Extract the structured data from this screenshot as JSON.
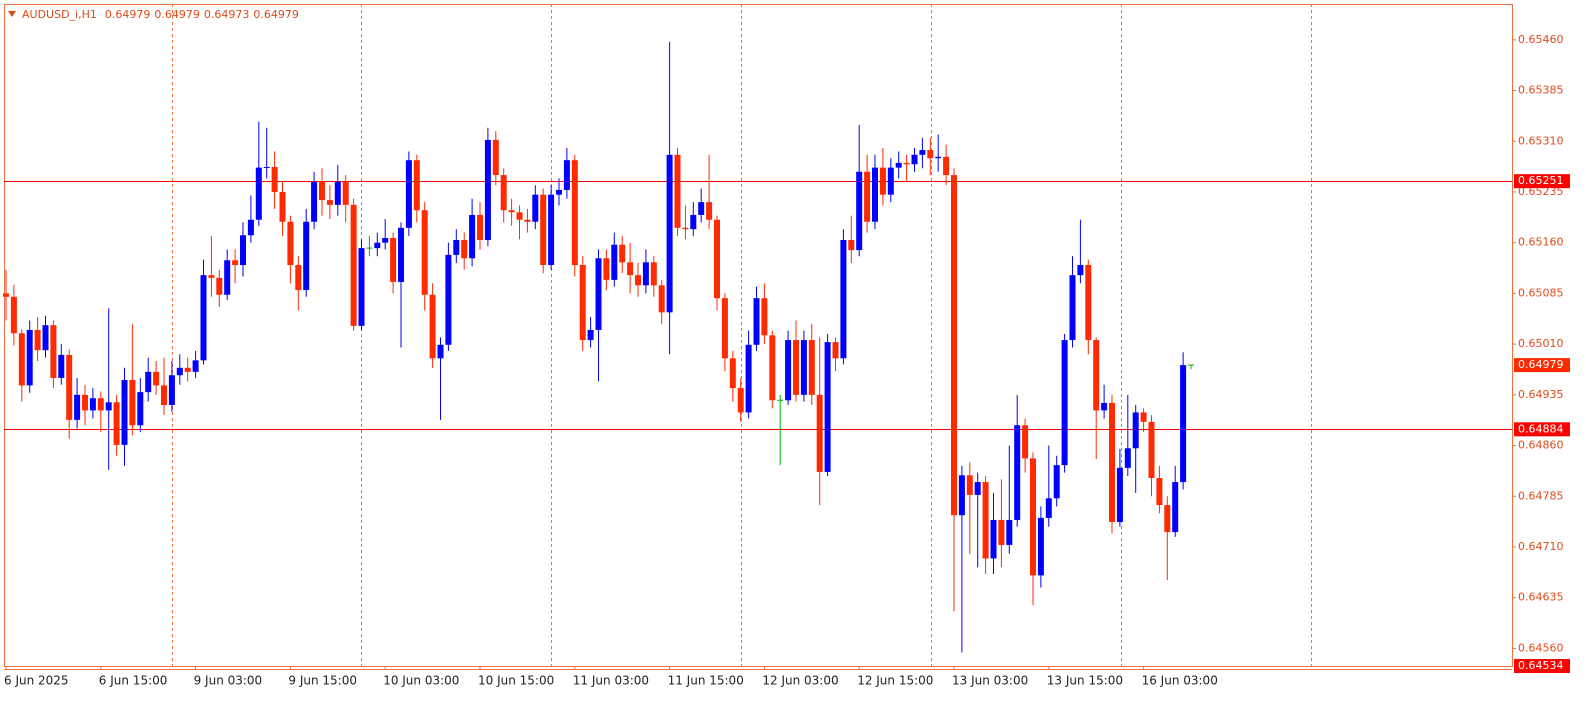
{
  "chart_data": {
    "type": "candlestick",
    "symbol": "AUDUSD_i,H1",
    "up_color": "#0000ff",
    "down_color": "#ff2a00",
    "doji_color": "#00b000",
    "ylim": [
      0.64534,
      0.65513
    ],
    "yticks": [
      {
        "value": 0.6546,
        "label": "0.65460"
      },
      0.65385,
      {
        "value": 0.6531,
        "label": "0.65310"
      },
      0.65235,
      {
        "value": 0.6516,
        "label": "0.65160"
      },
      0.65085,
      {
        "value": 0.6501,
        "label": "0.65010"
      },
      0.64935,
      {
        "value": 0.6486,
        "label": "0.64860"
      },
      0.64785,
      {
        "value": 0.6471,
        "label": "0.64710"
      },
      0.64635,
      {
        "value": 0.6456,
        "label": "0.64560"
      }
    ],
    "levels": [
      0.65251,
      0.64884
    ],
    "level_color": "#ff0000",
    "grid": true,
    "categories": [
      "6 Jun 2025",
      null,
      null,
      null,
      null,
      null,
      null,
      null,
      null,
      null,
      null,
      null,
      "6 Jun 15:00",
      null,
      null,
      null,
      null,
      null,
      null,
      null,
      null,
      null,
      null,
      null,
      "9 Jun 03:00",
      null,
      null,
      null,
      null,
      null,
      null,
      null,
      null,
      null,
      null,
      null,
      "9 Jun 15:00",
      null,
      null,
      null,
      null,
      null,
      null,
      null,
      null,
      null,
      null,
      null,
      "10 Jun 03:00",
      null,
      null,
      null,
      null,
      null,
      null,
      null,
      null,
      null,
      null,
      null,
      "10 Jun 15:00",
      null,
      null,
      null,
      null,
      null,
      null,
      null,
      null,
      null,
      null,
      null,
      "11 Jun 03:00",
      null,
      null,
      null,
      null,
      null,
      null,
      null,
      null,
      null,
      null,
      null,
      "11 Jun 15:00",
      null,
      null,
      null,
      null,
      null,
      null,
      null,
      null,
      null,
      null,
      null,
      "12 Jun 03:00",
      null,
      null,
      null,
      null,
      null,
      null,
      null,
      null,
      null,
      null,
      null,
      "12 Jun 15:00",
      null,
      null,
      null,
      null,
      null,
      null,
      null,
      null,
      null,
      null,
      null,
      "13 Jun 03:00",
      null,
      null,
      null,
      null,
      null,
      null,
      null,
      null,
      null,
      null,
      null,
      "13 Jun 15:00",
      null,
      null,
      null,
      null,
      null,
      null,
      null,
      null,
      null,
      null,
      null,
      "16 Jun 03:00",
      null,
      null,
      null,
      null,
      null,
      null
    ],
    "candles": [
      [
        0.65085,
        0.6512,
        0.65045,
        0.6508
      ],
      [
        0.6508,
        0.65098,
        0.65008,
        0.65026
      ],
      [
        0.65026,
        0.65032,
        0.64925,
        0.64949
      ],
      [
        0.64949,
        0.65045,
        0.64938,
        0.65031
      ],
      [
        0.65031,
        0.6505,
        0.64985,
        0.65001
      ],
      [
        0.65001,
        0.65052,
        0.6499,
        0.65038
      ],
      [
        0.65038,
        0.65045,
        0.64945,
        0.6496
      ],
      [
        0.6496,
        0.6501,
        0.6495,
        0.64994
      ],
      [
        0.64994,
        0.65002,
        0.6487,
        0.64898
      ],
      [
        0.64898,
        0.6496,
        0.64885,
        0.64935
      ],
      [
        0.64935,
        0.6495,
        0.6489,
        0.64912
      ],
      [
        0.64912,
        0.64945,
        0.649,
        0.6493
      ],
      [
        0.6493,
        0.6494,
        0.6488,
        0.64912
      ],
      [
        0.64912,
        0.65063,
        0.64824,
        0.64924
      ],
      [
        0.64924,
        0.64935,
        0.64845,
        0.64861
      ],
      [
        0.64861,
        0.64975,
        0.6483,
        0.64957
      ],
      [
        0.64957,
        0.6504,
        0.64875,
        0.6489
      ],
      [
        0.6489,
        0.6496,
        0.6488,
        0.64939
      ],
      [
        0.64939,
        0.6499,
        0.64925,
        0.64969
      ],
      [
        0.64969,
        0.64985,
        0.64935,
        0.64949
      ],
      [
        0.64949,
        0.6499,
        0.64905,
        0.6492
      ],
      [
        0.6492,
        0.64985,
        0.6491,
        0.64964
      ],
      [
        0.64964,
        0.64995,
        0.6495,
        0.64975
      ],
      [
        0.64975,
        0.6499,
        0.64955,
        0.64969
      ],
      [
        0.64969,
        0.65,
        0.6496,
        0.64986
      ],
      [
        0.64986,
        0.65135,
        0.6498,
        0.65112
      ],
      [
        0.65112,
        0.6517,
        0.6508,
        0.65108
      ],
      [
        0.65108,
        0.6512,
        0.65065,
        0.65083
      ],
      [
        0.65083,
        0.6515,
        0.65075,
        0.65134
      ],
      [
        0.65134,
        0.6515,
        0.651,
        0.65127
      ],
      [
        0.65127,
        0.6519,
        0.6511,
        0.65171
      ],
      [
        0.65171,
        0.6523,
        0.6516,
        0.65194
      ],
      [
        0.65194,
        0.65339,
        0.65185,
        0.65271
      ],
      [
        0.65271,
        0.6533,
        0.65255,
        0.65272
      ],
      [
        0.65272,
        0.65295,
        0.6521,
        0.65235
      ],
      [
        0.65235,
        0.6525,
        0.6517,
        0.65191
      ],
      [
        0.65191,
        0.652,
        0.651,
        0.65127
      ],
      [
        0.65127,
        0.6514,
        0.6506,
        0.6509
      ],
      [
        0.6509,
        0.6521,
        0.6508,
        0.65191
      ],
      [
        0.65191,
        0.65265,
        0.6518,
        0.6525
      ],
      [
        0.6525,
        0.6527,
        0.652,
        0.65223
      ],
      [
        0.65223,
        0.65245,
        0.65195,
        0.65216
      ],
      [
        0.65216,
        0.65275,
        0.652,
        0.6525
      ],
      [
        0.6525,
        0.6526,
        0.6519,
        0.65216
      ],
      [
        0.65216,
        0.65225,
        0.6503,
        0.65037
      ],
      [
        0.65037,
        0.65165,
        0.6503,
        0.65152
      ],
      [
        0.65152,
        0.6517,
        0.6514,
        0.65152
      ],
      [
        0.65152,
        0.65175,
        0.6514,
        0.6516
      ],
      [
        0.6516,
        0.65195,
        0.6515,
        0.65167
      ],
      [
        0.65167,
        0.65175,
        0.65085,
        0.65102
      ],
      [
        0.65102,
        0.6519,
        0.65005,
        0.65182
      ],
      [
        0.65182,
        0.65295,
        0.6517,
        0.65282
      ],
      [
        0.65282,
        0.6529,
        0.6519,
        0.65208
      ],
      [
        0.65208,
        0.6522,
        0.6506,
        0.65083
      ],
      [
        0.65083,
        0.651,
        0.64975,
        0.64989
      ],
      [
        0.64989,
        0.6502,
        0.64898,
        0.65009
      ],
      [
        0.65009,
        0.6516,
        0.65,
        0.65142
      ],
      [
        0.65142,
        0.6518,
        0.6513,
        0.65164
      ],
      [
        0.65164,
        0.65175,
        0.6512,
        0.65137
      ],
      [
        0.65137,
        0.65225,
        0.65125,
        0.65201
      ],
      [
        0.65201,
        0.6522,
        0.6515,
        0.65164
      ],
      [
        0.65164,
        0.6533,
        0.65155,
        0.65312
      ],
      [
        0.65312,
        0.65325,
        0.65245,
        0.6526
      ],
      [
        0.6526,
        0.6527,
        0.6519,
        0.65208
      ],
      [
        0.65208,
        0.65225,
        0.65185,
        0.65205
      ],
      [
        0.65205,
        0.65215,
        0.65165,
        0.65194
      ],
      [
        0.65194,
        0.6521,
        0.65175,
        0.65191
      ],
      [
        0.65191,
        0.65245,
        0.6518,
        0.65231
      ],
      [
        0.65231,
        0.6524,
        0.65115,
        0.65127
      ],
      [
        0.65127,
        0.65245,
        0.6512,
        0.65231
      ],
      [
        0.65231,
        0.65255,
        0.65215,
        0.65238
      ],
      [
        0.65238,
        0.653,
        0.65225,
        0.65282
      ],
      [
        0.65282,
        0.6529,
        0.6511,
        0.65127
      ],
      [
        0.65127,
        0.6514,
        0.65,
        0.65016
      ],
      [
        0.65016,
        0.6505,
        0.65005,
        0.65031
      ],
      [
        0.65031,
        0.6515,
        0.64955,
        0.65137
      ],
      [
        0.65137,
        0.6515,
        0.6509,
        0.65105
      ],
      [
        0.65105,
        0.65175,
        0.65095,
        0.65157
      ],
      [
        0.65157,
        0.6517,
        0.65115,
        0.65131
      ],
      [
        0.65131,
        0.6516,
        0.65085,
        0.65112
      ],
      [
        0.65112,
        0.6513,
        0.6508,
        0.65097
      ],
      [
        0.65097,
        0.6515,
        0.65085,
        0.65131
      ],
      [
        0.65131,
        0.6514,
        0.6508,
        0.65097
      ],
      [
        0.65097,
        0.65105,
        0.6504,
        0.65057
      ],
      [
        0.65057,
        0.65457,
        0.64995,
        0.6529
      ],
      [
        0.6529,
        0.653,
        0.6517,
        0.65182
      ],
      [
        0.65182,
        0.65215,
        0.65165,
        0.6518
      ],
      [
        0.6518,
        0.6522,
        0.6517,
        0.65201
      ],
      [
        0.65201,
        0.6524,
        0.6519,
        0.6522
      ],
      [
        0.6522,
        0.6529,
        0.6518,
        0.65194
      ],
      [
        0.65194,
        0.652,
        0.6506,
        0.65078
      ],
      [
        0.65078,
        0.65085,
        0.6497,
        0.64989
      ],
      [
        0.64989,
        0.65,
        0.64925,
        0.64945
      ],
      [
        0.64945,
        0.6496,
        0.64895,
        0.64909
      ],
      [
        0.64909,
        0.6503,
        0.649,
        0.65009
      ],
      [
        0.65009,
        0.65095,
        0.65,
        0.65078
      ],
      [
        0.65078,
        0.651,
        0.6501,
        0.65023
      ],
      [
        0.65023,
        0.6503,
        0.64915,
        0.64927
      ],
      [
        0.64927,
        0.64935,
        0.64831,
        0.64927
      ],
      [
        0.64927,
        0.6503,
        0.6492,
        0.65016
      ],
      [
        0.65016,
        0.65045,
        0.64925,
        0.64935
      ],
      [
        0.64935,
        0.6503,
        0.64925,
        0.65016
      ],
      [
        0.65016,
        0.6504,
        0.6492,
        0.64935
      ],
      [
        0.64935,
        0.6502,
        0.64772,
        0.64821
      ],
      [
        0.64821,
        0.65025,
        0.64815,
        0.65013
      ],
      [
        0.65013,
        0.6502,
        0.6497,
        0.64989
      ],
      [
        0.64989,
        0.6518,
        0.6498,
        0.65164
      ],
      [
        0.65164,
        0.652,
        0.6513,
        0.65149
      ],
      [
        0.65149,
        0.65334,
        0.6514,
        0.65265
      ],
      [
        0.65265,
        0.6529,
        0.65175,
        0.65191
      ],
      [
        0.65191,
        0.6529,
        0.6518,
        0.65271
      ],
      [
        0.65271,
        0.653,
        0.65215,
        0.65231
      ],
      [
        0.65231,
        0.65285,
        0.6522,
        0.65271
      ],
      [
        0.65271,
        0.65295,
        0.65255,
        0.65278
      ],
      [
        0.65278,
        0.6529,
        0.6525,
        0.65276
      ],
      [
        0.65276,
        0.653,
        0.65265,
        0.6529
      ],
      [
        0.6529,
        0.65315,
        0.6527,
        0.65297
      ],
      [
        0.65297,
        0.65315,
        0.6526,
        0.65285
      ],
      [
        0.65285,
        0.6532,
        0.65265,
        0.65287
      ],
      [
        0.65287,
        0.65305,
        0.65245,
        0.6526
      ],
      [
        0.6526,
        0.6527,
        0.64615,
        0.64757
      ],
      [
        0.64757,
        0.6483,
        0.64554,
        0.64816
      ],
      [
        0.64816,
        0.64835,
        0.647,
        0.64787
      ],
      [
        0.64787,
        0.6482,
        0.6468,
        0.64806
      ],
      [
        0.64806,
        0.64815,
        0.6467,
        0.64693
      ],
      [
        0.64693,
        0.6479,
        0.6467,
        0.6475
      ],
      [
        0.6475,
        0.6481,
        0.6468,
        0.64713
      ],
      [
        0.64713,
        0.6486,
        0.647,
        0.6475
      ],
      [
        0.6475,
        0.64935,
        0.6474,
        0.6489
      ],
      [
        0.6489,
        0.649,
        0.6482,
        0.64841
      ],
      [
        0.64841,
        0.6485,
        0.64624,
        0.64668
      ],
      [
        0.64668,
        0.6477,
        0.6465,
        0.64753
      ],
      [
        0.64753,
        0.6486,
        0.6474,
        0.64782
      ],
      [
        0.64782,
        0.64845,
        0.6477,
        0.64831
      ],
      [
        0.64831,
        0.65025,
        0.6482,
        0.65016
      ],
      [
        0.65016,
        0.6514,
        0.65005,
        0.65112
      ],
      [
        0.65112,
        0.65194,
        0.651,
        0.65127
      ],
      [
        0.65127,
        0.65135,
        0.64995,
        0.65016
      ],
      [
        0.65016,
        0.6502,
        0.6484,
        0.64912
      ],
      [
        0.64912,
        0.6495,
        0.649,
        0.64923
      ],
      [
        0.64923,
        0.64935,
        0.6473,
        0.64747
      ],
      [
        0.64747,
        0.64855,
        0.6474,
        0.64827
      ],
      [
        0.64827,
        0.64935,
        0.64815,
        0.64856
      ],
      [
        0.64856,
        0.6492,
        0.6479,
        0.64909
      ],
      [
        0.64909,
        0.64915,
        0.6488,
        0.64895
      ],
      [
        0.64895,
        0.64905,
        0.64785,
        0.64812
      ],
      [
        0.64812,
        0.6483,
        0.6476,
        0.64772
      ],
      [
        0.64772,
        0.64785,
        0.64661,
        0.64732
      ],
      [
        0.64732,
        0.6483,
        0.64725,
        0.64806
      ],
      [
        0.64806,
        0.64998,
        0.64795,
        0.64979
      ],
      [
        0.64979,
        0.64979,
        0.64973,
        0.64979
      ]
    ]
  }
}
